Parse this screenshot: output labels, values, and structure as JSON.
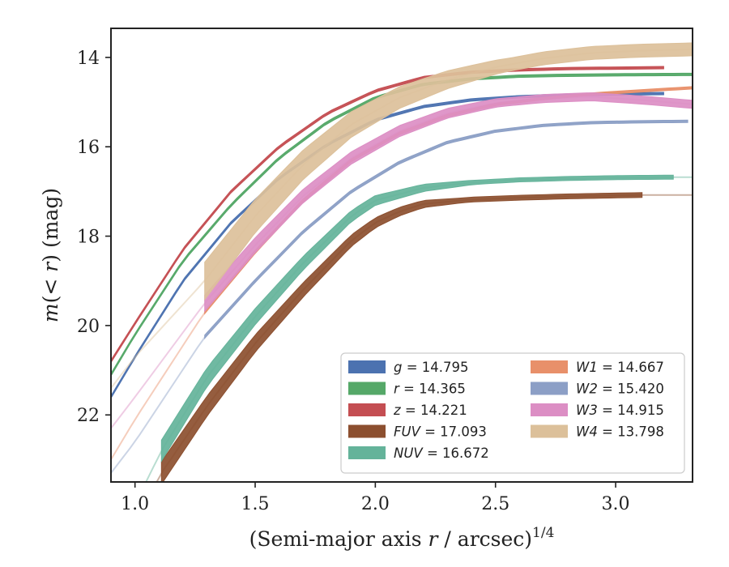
{
  "chart_data": {
    "type": "line",
    "xlabel": "(Semi-major axis r / arcsec)1/4",
    "xlabel_parts": {
      "pre": "(Semi-major axis ",
      "var": "r",
      "post": " / arcsec)",
      "sup": "1/4"
    },
    "ylabel": "m(< r) (mag)",
    "ylabel_parts": {
      "var1": "m",
      "mid": "(< ",
      "var2": "r",
      "post": ") (mag)"
    },
    "xlim": [
      0.9,
      3.32
    ],
    "ylim": [
      23.5,
      13.35
    ],
    "y_inverted": true,
    "xticks": [
      1.0,
      1.5,
      2.0,
      2.5,
      3.0
    ],
    "xtick_labels": [
      "1.0",
      "1.5",
      "2.0",
      "2.5",
      "3.0"
    ],
    "yticks": [
      14,
      16,
      18,
      20,
      22
    ],
    "ytick_labels": [
      "14",
      "16",
      "18",
      "20",
      "22"
    ],
    "legend_position": "lower-right",
    "series": [
      {
        "key": "g",
        "legend": "g = 14.795",
        "color": "#4c72b0",
        "x": [
          0.9,
          1.0,
          1.2,
          1.4,
          1.6,
          1.8,
          2.0,
          2.2,
          2.4,
          2.6,
          2.8,
          3.0,
          3.2
        ],
        "y": [
          21.6,
          20.7,
          19.0,
          17.7,
          16.7,
          15.95,
          15.4,
          15.1,
          14.95,
          14.88,
          14.84,
          14.82,
          14.81
        ],
        "solid_from": 0.9,
        "solid_to": 3.2,
        "width": [
          3,
          3
        ]
      },
      {
        "key": "r",
        "legend": "r = 14.365",
        "color": "#55a868",
        "x": [
          0.9,
          1.0,
          1.2,
          1.4,
          1.6,
          1.8,
          2.0,
          2.2,
          2.4,
          2.6,
          2.8,
          3.0,
          3.32
        ],
        "y": [
          21.1,
          20.2,
          18.55,
          17.3,
          16.25,
          15.45,
          14.9,
          14.6,
          14.48,
          14.42,
          14.4,
          14.39,
          14.38
        ],
        "solid_from": 0.9,
        "solid_to": 3.32,
        "width": [
          3,
          3
        ]
      },
      {
        "key": "z",
        "legend": "z = 14.221",
        "color": "#c44e52",
        "x": [
          0.9,
          1.0,
          1.2,
          1.4,
          1.6,
          1.8,
          2.0,
          2.2,
          2.4,
          2.6,
          2.8,
          3.0,
          3.2
        ],
        "y": [
          20.8,
          19.95,
          18.3,
          17.0,
          16.0,
          15.25,
          14.75,
          14.45,
          14.33,
          14.28,
          14.25,
          14.24,
          14.23
        ],
        "solid_from": 0.9,
        "solid_to": 3.2,
        "width": [
          3,
          3
        ]
      },
      {
        "key": "FUV",
        "legend": "FUV = 17.093",
        "color": "#8c4f2f",
        "x": [
          1.0,
          1.11,
          1.3,
          1.5,
          1.7,
          1.9,
          2.0,
          2.1,
          2.2,
          2.4,
          2.6,
          2.8,
          3.0,
          3.11,
          3.32
        ],
        "y": [
          24.4,
          23.3,
          21.8,
          20.4,
          19.2,
          18.1,
          17.7,
          17.45,
          17.28,
          17.18,
          17.14,
          17.11,
          17.09,
          17.08,
          17.08
        ],
        "solid_from": 1.11,
        "solid_to": 3.11,
        "width": [
          28,
          6
        ]
      },
      {
        "key": "NUV",
        "legend": "NUV = 16.672",
        "color": "#64b39a",
        "x": [
          1.0,
          1.11,
          1.3,
          1.5,
          1.7,
          1.9,
          2.0,
          2.2,
          2.4,
          2.6,
          2.8,
          3.0,
          3.24,
          3.32
        ],
        "y": [
          24.0,
          22.8,
          21.15,
          19.8,
          18.6,
          17.55,
          17.2,
          16.92,
          16.8,
          16.74,
          16.71,
          16.69,
          16.68,
          16.68
        ],
        "solid_from": 1.11,
        "solid_to": 3.24,
        "width": [
          26,
          5
        ]
      },
      {
        "key": "W1",
        "legend": "W1 = 14.667",
        "color": "#e8906a",
        "x": [
          0.9,
          1.0,
          1.29,
          1.5,
          1.7,
          1.9,
          2.1,
          2.3,
          2.5,
          2.7,
          2.9,
          3.1,
          3.32
        ],
        "y": [
          23.0,
          22.1,
          19.7,
          18.35,
          17.2,
          16.3,
          15.7,
          15.3,
          15.05,
          14.92,
          14.82,
          14.75,
          14.68
        ],
        "solid_from": 1.29,
        "solid_to": 3.32,
        "width": [
          4,
          3
        ]
      },
      {
        "key": "W2",
        "legend": "W2 = 15.420",
        "color": "#8c9fc6",
        "x": [
          0.9,
          1.0,
          1.29,
          1.5,
          1.7,
          1.9,
          2.1,
          2.3,
          2.5,
          2.7,
          2.9,
          3.1,
          3.3
        ],
        "y": [
          23.3,
          22.6,
          20.25,
          19.0,
          17.9,
          17.0,
          16.35,
          15.9,
          15.65,
          15.52,
          15.46,
          15.44,
          15.43
        ],
        "solid_from": 1.29,
        "solid_to": 3.3,
        "width": [
          4,
          3
        ]
      },
      {
        "key": "W3",
        "legend": "W3 = 14.915",
        "color": "#dc8ec4",
        "x": [
          0.9,
          1.0,
          1.29,
          1.5,
          1.7,
          1.9,
          2.1,
          2.3,
          2.5,
          2.7,
          2.9,
          3.1,
          3.32
        ],
        "y": [
          22.3,
          21.6,
          19.5,
          18.2,
          17.1,
          16.25,
          15.65,
          15.25,
          15.02,
          14.92,
          14.88,
          14.95,
          15.05
        ],
        "solid_from": 1.29,
        "solid_to": 3.32,
        "width": [
          20,
          10
        ]
      },
      {
        "key": "W4",
        "legend": "W4 = 13.798",
        "color": "#dcc09a",
        "x": [
          0.9,
          1.0,
          1.29,
          1.5,
          1.7,
          1.9,
          2.1,
          2.3,
          2.5,
          2.7,
          2.9,
          3.1,
          3.32
        ],
        "y": [
          21.4,
          20.7,
          19.0,
          17.55,
          16.4,
          15.5,
          14.9,
          14.5,
          14.22,
          14.02,
          13.9,
          13.85,
          13.82
        ],
        "solid_from": 1.29,
        "solid_to": 3.32,
        "width": [
          46,
          16
        ]
      }
    ]
  }
}
